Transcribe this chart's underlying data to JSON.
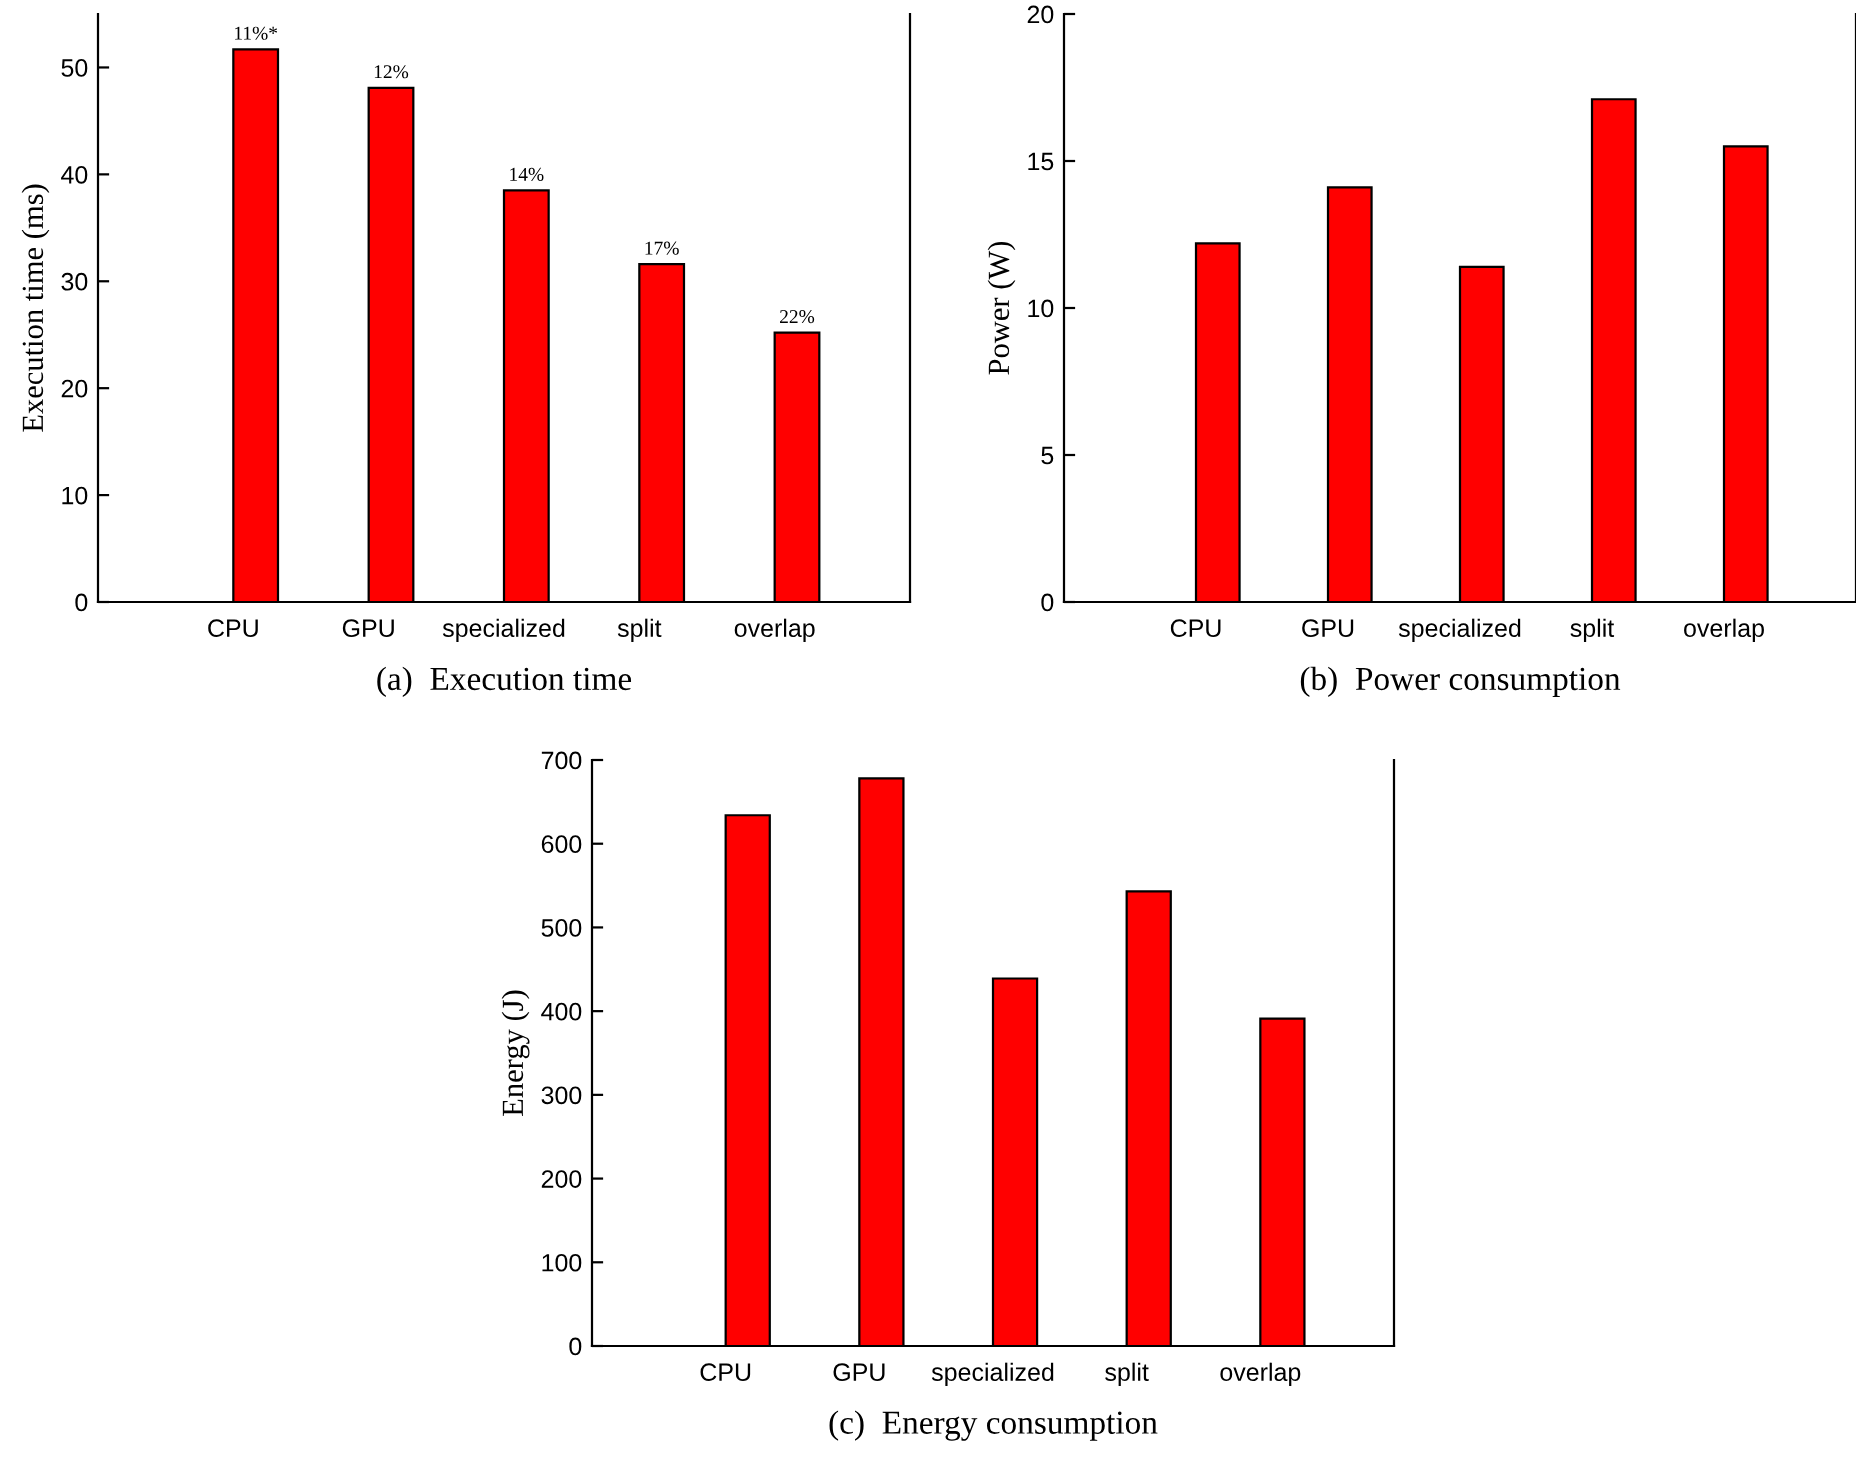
{
  "chart_data": [
    {
      "type": "bar",
      "title": "(a)  Execution time",
      "ylabel": "Execution time (ms)",
      "categories": [
        "CPU",
        "GPU",
        "specialized",
        "split",
        "overlap"
      ],
      "values": [
        51.7,
        48.1,
        38.5,
        31.6,
        25.2
      ],
      "annotations": [
        {
          "text": "11%*",
          "x": "CPU",
          "y": 51.7
        },
        {
          "text": "12%",
          "x": "GPU",
          "y": 48.1
        },
        {
          "text": "14%",
          "x": "specialized",
          "y": 38.5
        },
        {
          "text": "17%",
          "x": "split",
          "y": 31.6
        },
        {
          "text": "22%",
          "x": "overlap",
          "y": 25.2
        }
      ],
      "color": "#ff0000",
      "ylim": [
        0,
        55
      ],
      "yticks": [
        0,
        10,
        20,
        30,
        40,
        50
      ],
      "grid": false,
      "legend": false
    },
    {
      "type": "bar",
      "title": "(b)  Power consumption",
      "ylabel": "Power (W)",
      "categories": [
        "CPU",
        "GPU",
        "specialized",
        "split",
        "overlap"
      ],
      "values": [
        12.2,
        14.1,
        11.4,
        17.1,
        15.5
      ],
      "color": "#ff0000",
      "ylim": [
        0,
        20
      ],
      "yticks": [
        0,
        5,
        10,
        15,
        20
      ],
      "grid": false,
      "legend": false
    },
    {
      "type": "bar",
      "title": "(c)  Energy consumption",
      "ylabel": "Energy (J)",
      "categories": [
        "CPU",
        "GPU",
        "specialized",
        "split",
        "overlap"
      ],
      "values": [
        634,
        678,
        439,
        543,
        391
      ],
      "color": "#ff0000",
      "ylim": [
        0,
        700
      ],
      "yticks": [
        0,
        100,
        200,
        300,
        400,
        500,
        600,
        700
      ],
      "grid": false,
      "legend": false
    }
  ]
}
